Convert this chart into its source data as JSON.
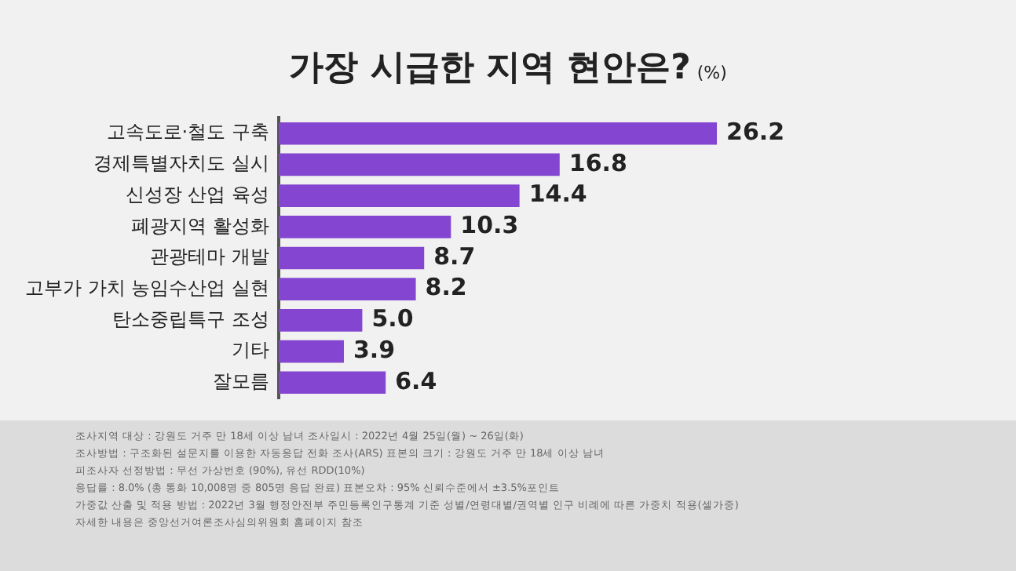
{
  "chart_data": {
    "type": "bar",
    "orientation": "horizontal",
    "title": "가장 시급한 지역 현안은?",
    "subtitle": "(%)",
    "categories": [
      "고속도로·철도 구축",
      "경제특별자치도 실시",
      "신성장 산업 육성",
      "폐광지역 활성화",
      "관광테마 개발",
      "고부가 가치 농임수산업 실현",
      "탄소중립특구 조성",
      "기타",
      "잘모름"
    ],
    "values": [
      26.2,
      16.8,
      14.4,
      10.3,
      8.7,
      8.2,
      5.0,
      3.9,
      6.4
    ],
    "value_labels": [
      "26.2",
      "16.8",
      "14.4",
      "10.3",
      "8.7",
      "8.2",
      "5.0",
      "3.9",
      "6.4"
    ],
    "color": "#8446d0",
    "legend": false,
    "annotations": [
      "조사지역 대상 : 강원도 거주 만 18세 이상 남녀    조사일시 : 2022년 4월 25일(월) ~ 26일(화)",
      "조사방법 : 구조화된 설문지를 이용한 자동응답 전화 조사(ARS)    표본의 크기 : 강원도 거주 만 18세 이상 남녀",
      "피조사자 선정방법 : 무선 가상번호 (90%), 유선 RDD(10%)",
      "응답률 : 8.0% (총 통화 10,008명 중 805명 응답 완료)    표본오차 : 95% 신뢰수준에서 ±3.5%포인트",
      "가중값 산출 및 적용 방법 : 2022년 3월 행정안전부 주민등록인구통계 기준 성별/연령대별/권역별 인구 비례에 따른 가중치 적용(셀가중)",
      "자세한 내용은 중앙선거여론조사심의위원회 홈페이지 참조"
    ]
  }
}
